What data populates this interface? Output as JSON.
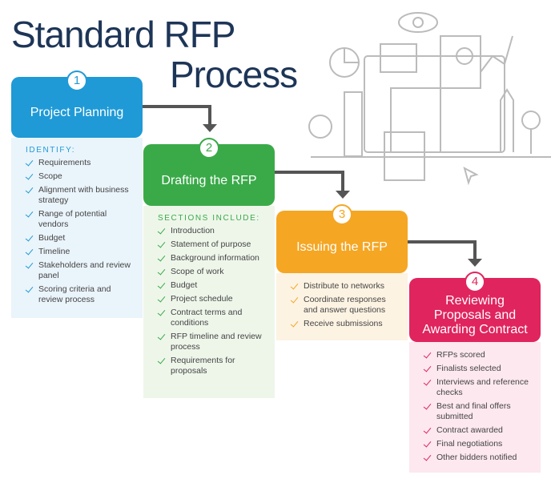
{
  "title": {
    "line1": "Standard RFP",
    "line2": "Process"
  },
  "steps": [
    {
      "number": "1",
      "title": "Project Planning",
      "heading": "IDENTIFY:",
      "items": [
        "Requirements",
        "Scope",
        "Alignment with business strategy",
        "Range of potential vendors",
        "Budget",
        "Timeline",
        "Stakeholders and review panel",
        "Scoring criteria and review process"
      ]
    },
    {
      "number": "2",
      "title": "Drafting the RFP",
      "heading": "SECTIONS INCLUDE:",
      "items": [
        "Introduction",
        "Statement of purpose",
        "Background information",
        "Scope of work",
        "Budget",
        "Project schedule",
        "Contract terms and conditions",
        "RFP timeline and review process",
        "Requirements for proposals"
      ]
    },
    {
      "number": "3",
      "title": "Issuing the RFP",
      "items": [
        "Distribute to networks",
        "Coordinate responses and answer questions",
        "Receive submissions"
      ]
    },
    {
      "number": "4",
      "title": "Reviewing Proposals and Awarding Contract",
      "items": [
        "RFPs scored",
        "Finalists selected",
        "Interviews and reference checks",
        "Best and final offers submitted",
        "Contract awarded",
        "Final negotiations",
        "Other bidders notified"
      ]
    }
  ]
}
